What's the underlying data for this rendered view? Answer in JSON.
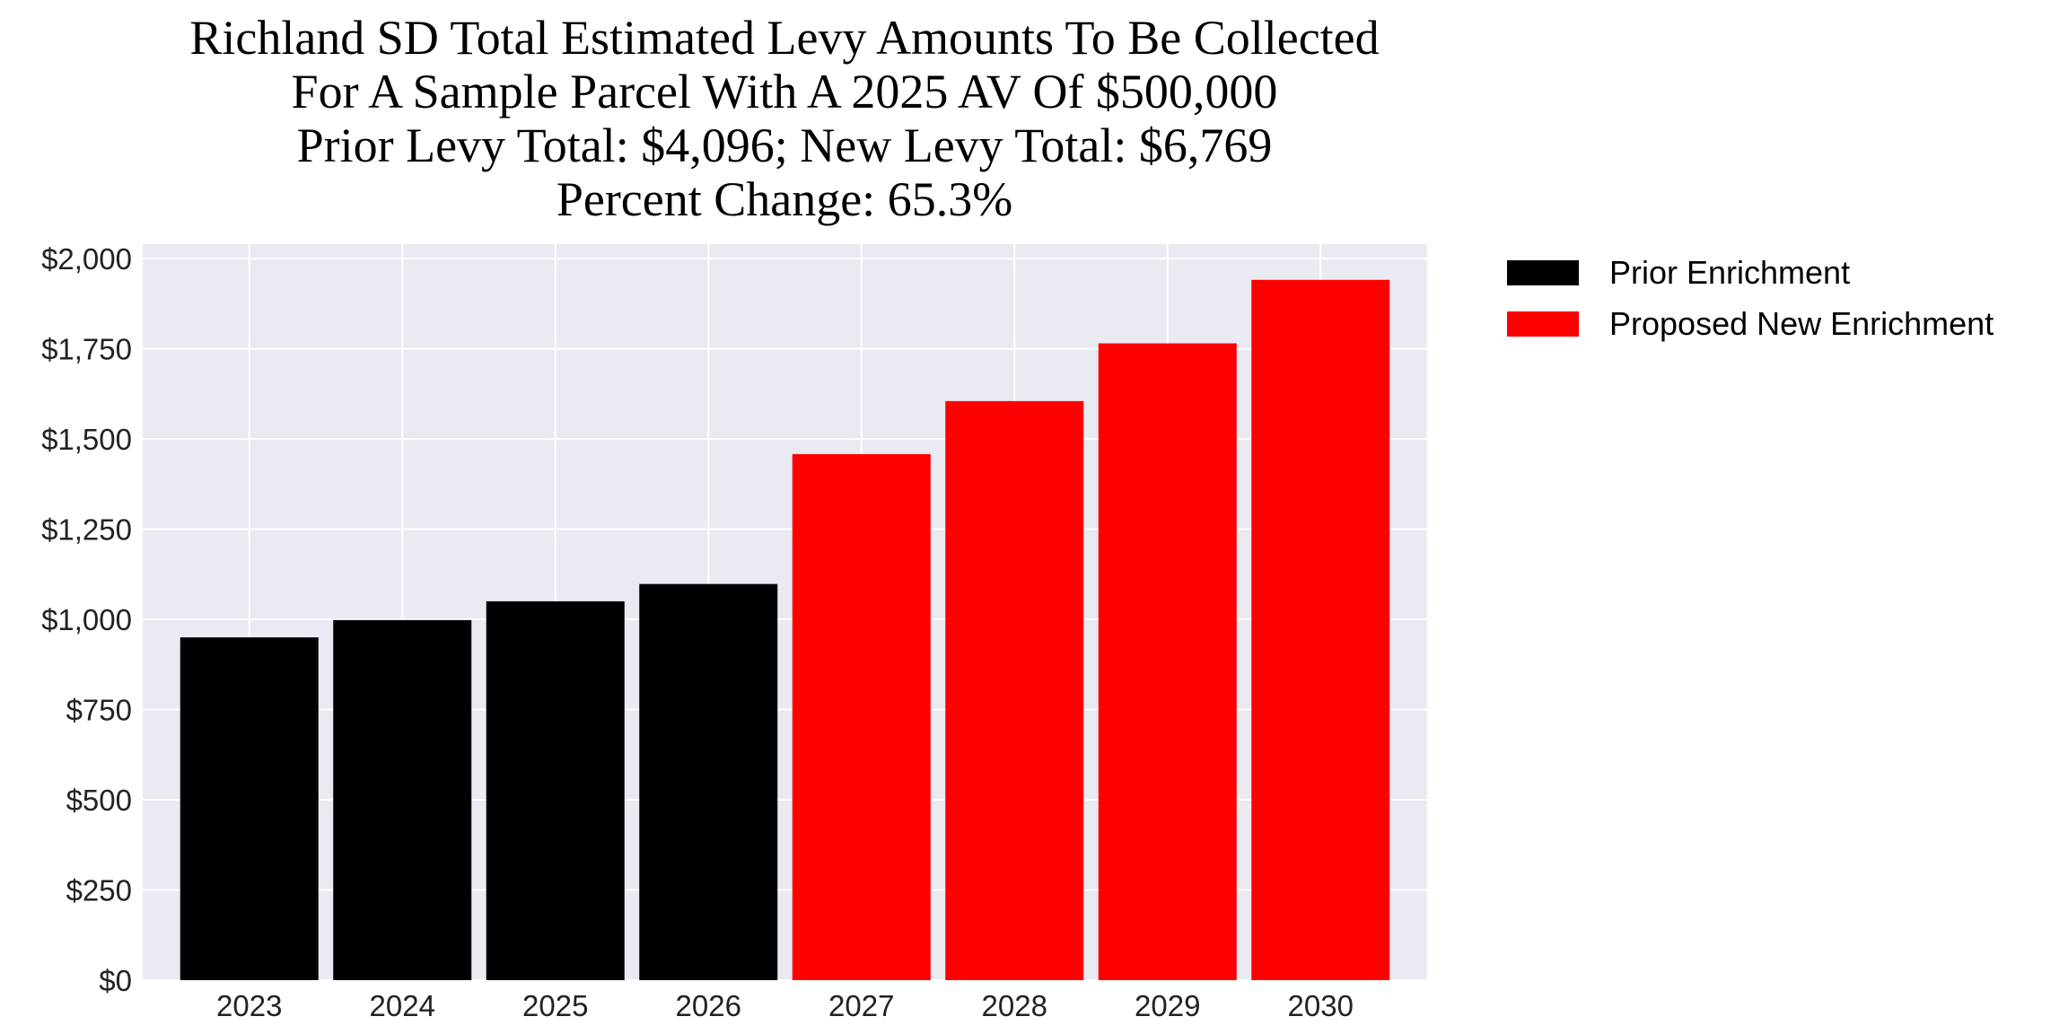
{
  "chart_data": {
    "type": "bar",
    "title_lines": [
      "Richland SD Total Estimated Levy Amounts To Be Collected",
      "For A Sample Parcel With A 2025 AV Of $500,000",
      "Prior Levy Total:  $4,096; New Levy Total: $6,769",
      "Percent Change: 65.3%"
    ],
    "categories": [
      "2023",
      "2024",
      "2025",
      "2026",
      "2027",
      "2028",
      "2029",
      "2030"
    ],
    "series": [
      {
        "name": "Prior Enrichment",
        "color": "#000000",
        "values": [
          950,
          998,
          1050,
          1098,
          null,
          null,
          null,
          null
        ]
      },
      {
        "name": "Proposed New Enrichment",
        "color": "#ff0000",
        "values": [
          null,
          null,
          null,
          null,
          1458,
          1605,
          1765,
          1941
        ]
      }
    ],
    "yticks": [
      0,
      250,
      500,
      750,
      1000,
      1250,
      1500,
      1750,
      2000
    ],
    "ytick_labels": [
      "$0",
      "$250",
      "$500",
      "$750",
      "$1,000",
      "$1,250",
      "$1,500",
      "$1,750",
      "$2,000"
    ],
    "ylim": [
      0,
      2040
    ],
    "xlabel": "",
    "ylabel": "",
    "grid": true,
    "background": "#eaeaf2",
    "legend_position": "outside-top-right"
  }
}
